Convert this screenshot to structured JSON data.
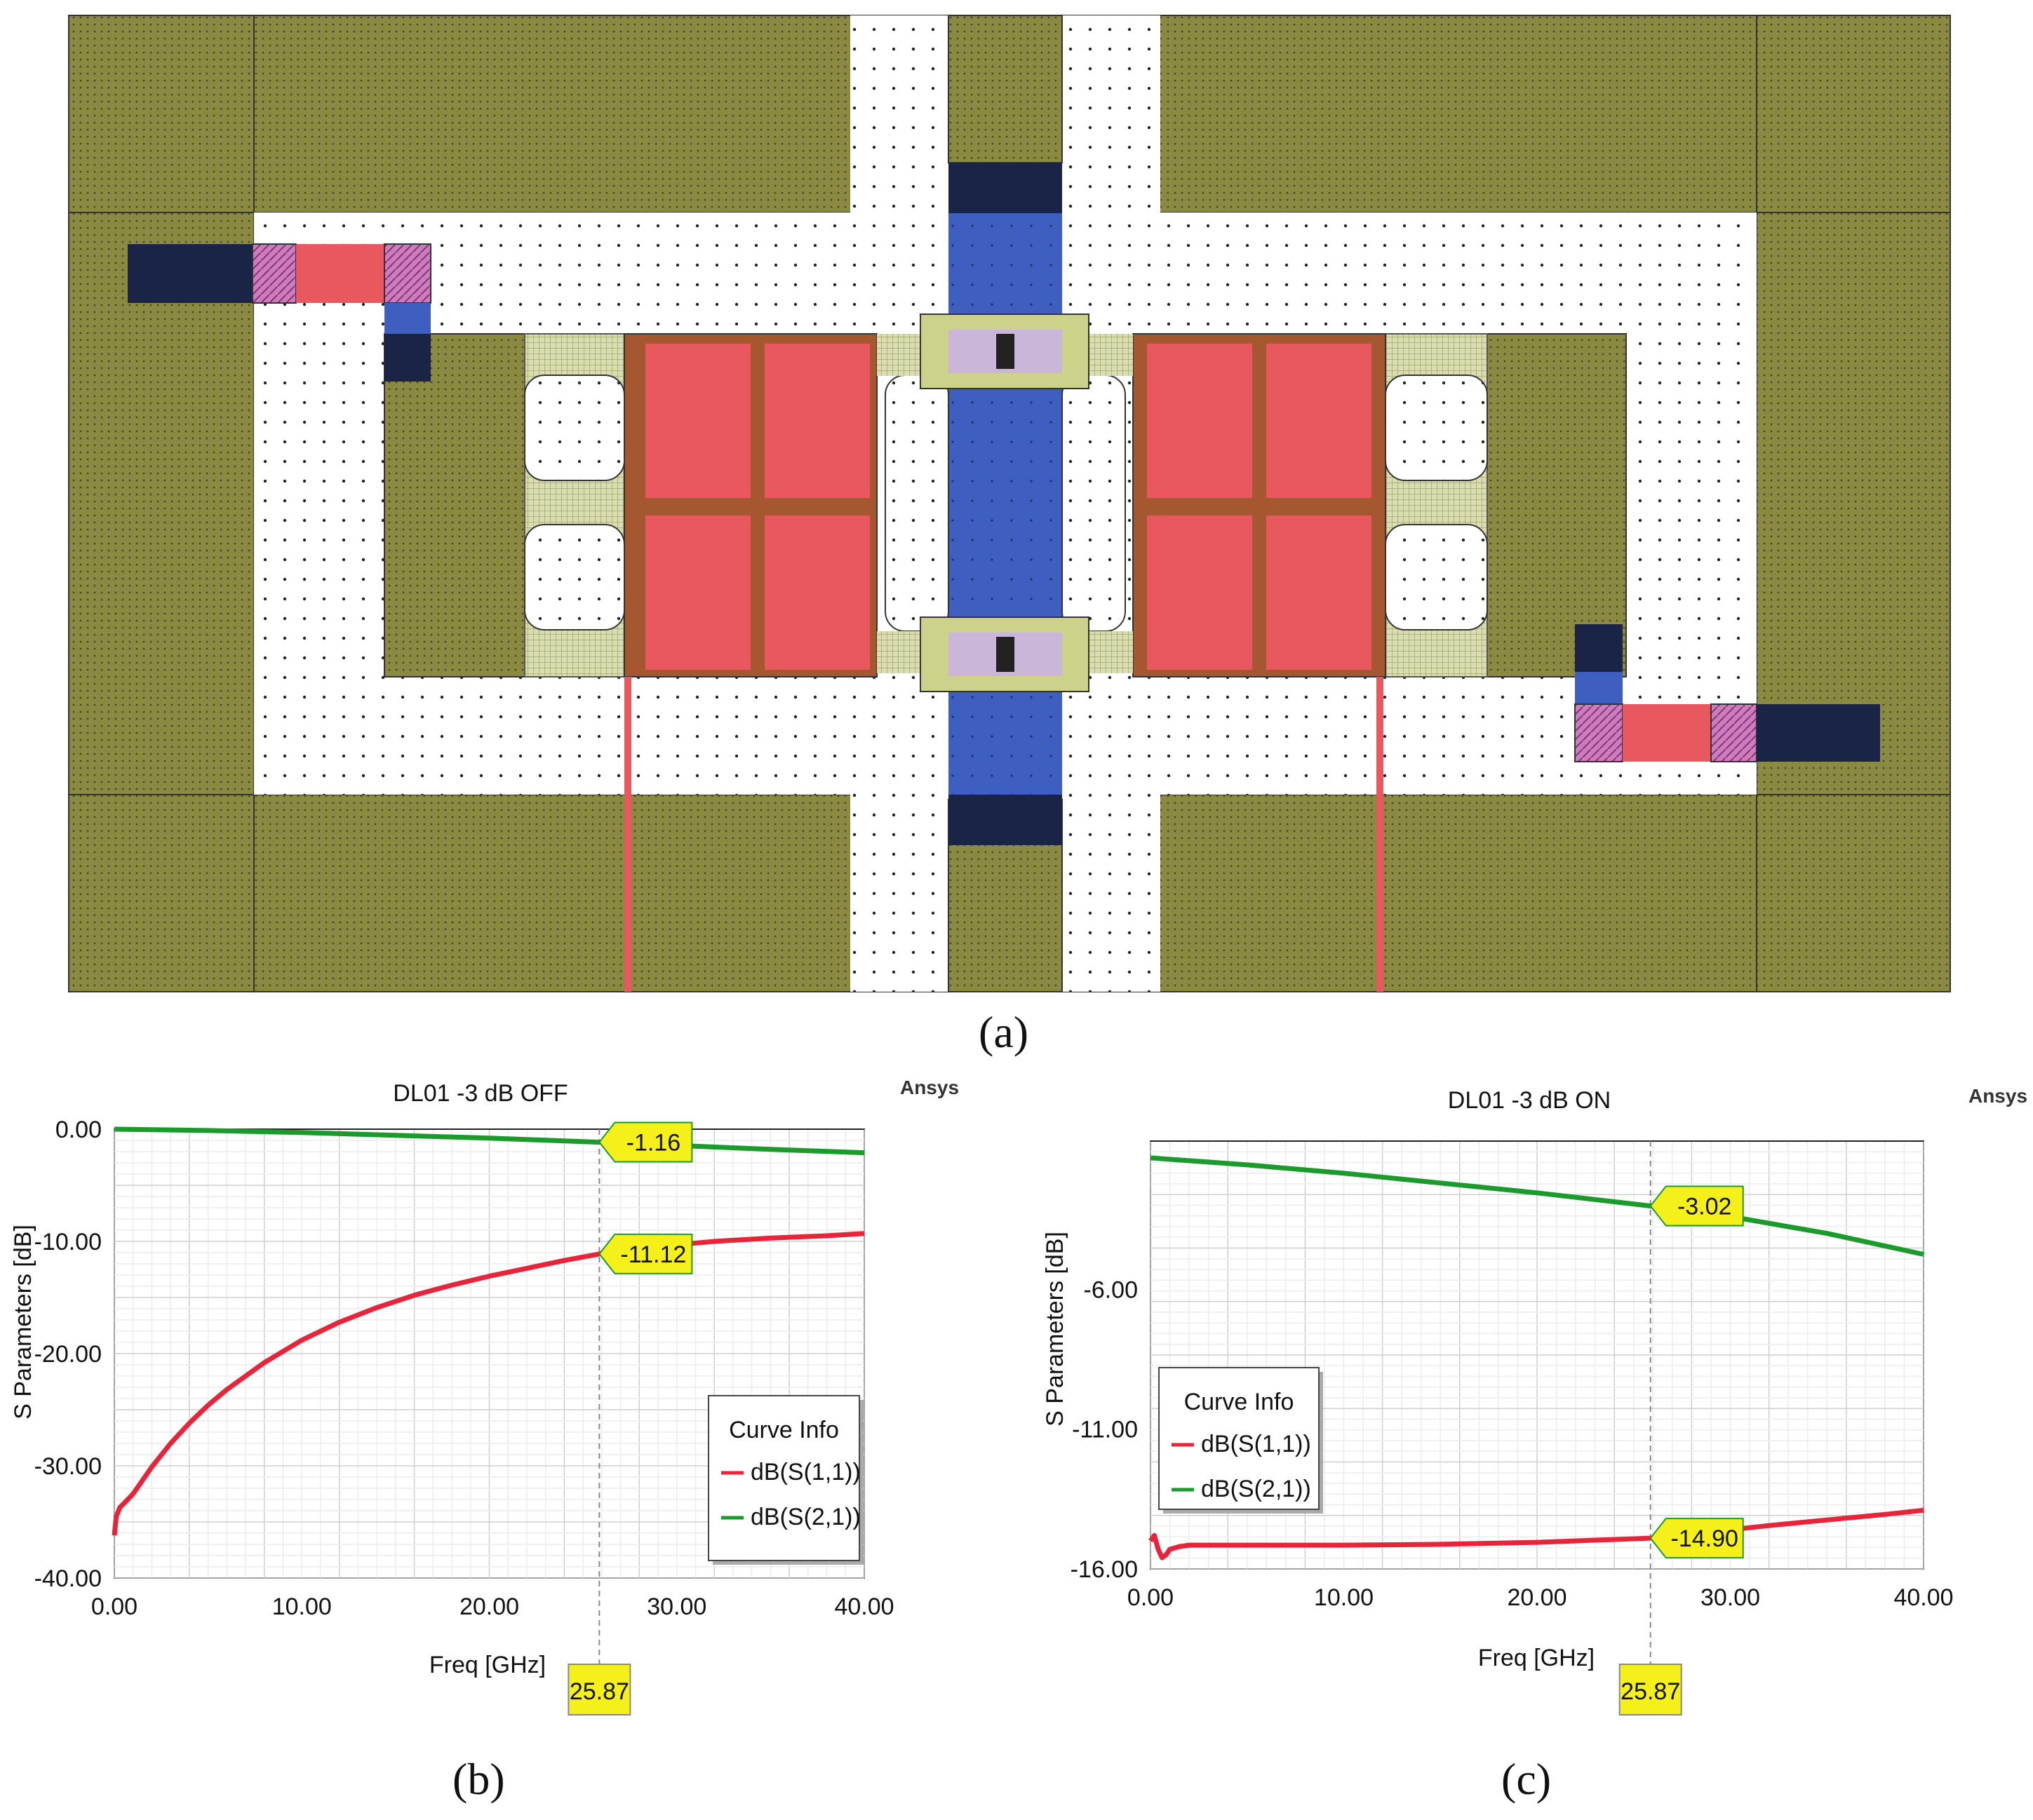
{
  "captions": {
    "a": "(a)",
    "b": "(b)",
    "c": "(c)"
  },
  "layout_colors": {
    "ground": "#8a8a42",
    "signal": "#ffffff",
    "line": "#3e5fbf",
    "anchor": "#1a2447",
    "resistor": "#e8585e",
    "capacitor_frame": "#a5572f",
    "via": "#d07ac0",
    "bridge": "#ccd28a"
  },
  "chart_data": [
    {
      "type": "line",
      "title": "DL01 -3 dB OFF",
      "watermark": "Ansys",
      "xlabel": "Freq [GHz]",
      "ylabel": "S Parameters [dB]",
      "xlim": [
        0,
        40
      ],
      "ylim": [
        -40,
        0
      ],
      "xticks": [
        "0.00",
        "10.00",
        "20.00",
        "30.00",
        "40.00"
      ],
      "yticks": [
        "0.00",
        "-10.00",
        "-20.00",
        "-30.00",
        "-40.00"
      ],
      "grid": true,
      "legend_title": "Curve Info",
      "legend_position": "bottom-right",
      "series": [
        {
          "name": "dB(S(1,1))",
          "color": "#e8243a",
          "x": [
            0,
            0.1,
            0.3,
            0.6,
            1,
            1.5,
            2,
            3,
            4,
            5,
            6,
            8,
            10,
            12,
            14,
            16,
            18,
            20,
            22,
            24,
            25.87,
            28,
            30,
            32,
            35,
            38,
            40
          ],
          "y": [
            -36.2,
            -34.5,
            -33.7,
            -33.2,
            -32.5,
            -31.3,
            -30.1,
            -28.0,
            -26.2,
            -24.6,
            -23.2,
            -20.8,
            -18.8,
            -17.2,
            -15.9,
            -14.8,
            -13.9,
            -13.1,
            -12.4,
            -11.7,
            -11.12,
            -10.6,
            -10.3,
            -10.0,
            -9.7,
            -9.5,
            -9.3
          ]
        },
        {
          "name": "dB(S(2,1))",
          "color": "#1a9b2c",
          "x": [
            0,
            5,
            10,
            15,
            20,
            25.87,
            30,
            35,
            40
          ],
          "y": [
            0.0,
            -0.12,
            -0.3,
            -0.55,
            -0.8,
            -1.16,
            -1.45,
            -1.8,
            -2.1
          ]
        }
      ],
      "markers": [
        {
          "label": "-1.16",
          "x": 25.87,
          "y": -1.16
        },
        {
          "label": "-11.12",
          "x": 25.87,
          "y": -11.12
        }
      ],
      "x_marker": {
        "label": "25.87",
        "x": 25.87
      }
    },
    {
      "type": "line",
      "title": "DL01 -3 dB ON",
      "watermark": "Ansys",
      "xlabel": "Freq [GHz]",
      "ylabel": "S Parameters [dB]",
      "xlim": [
        0,
        40
      ],
      "ylim": [
        -16,
        -0.7
      ],
      "xticks": [
        "0.00",
        "10.00",
        "20.00",
        "30.00",
        "40.00"
      ],
      "yticks": [
        "-6.00",
        "-11.00",
        "-16.00"
      ],
      "ytick_values": [
        -6,
        -11,
        -16
      ],
      "grid": true,
      "legend_title": "Curve Info",
      "legend_position": "center-left",
      "series": [
        {
          "name": "dB(S(1,1))",
          "color": "#e8243a",
          "x": [
            0,
            0.2,
            0.4,
            0.6,
            0.8,
            1,
            1.5,
            2,
            5,
            10,
            15,
            20,
            25.87,
            28,
            30,
            32,
            35,
            38,
            40
          ],
          "y": [
            -15.0,
            -14.8,
            -15.3,
            -15.6,
            -15.5,
            -15.3,
            -15.2,
            -15.15,
            -15.15,
            -15.15,
            -15.12,
            -15.05,
            -14.9,
            -14.75,
            -14.6,
            -14.45,
            -14.25,
            -14.05,
            -13.9
          ]
        },
        {
          "name": "dB(S(2,1))",
          "color": "#1a9b2c",
          "x": [
            0,
            5,
            10,
            15,
            20,
            25.87,
            30,
            35,
            40
          ],
          "y": [
            -1.3,
            -1.55,
            -1.85,
            -2.2,
            -2.55,
            -3.02,
            -3.4,
            -4.0,
            -4.75
          ]
        }
      ],
      "markers": [
        {
          "label": "-3.02",
          "x": 25.87,
          "y": -3.02
        },
        {
          "label": "-14.90",
          "x": 25.87,
          "y": -14.9
        }
      ],
      "x_marker": {
        "label": "25.87",
        "x": 25.87
      }
    }
  ]
}
